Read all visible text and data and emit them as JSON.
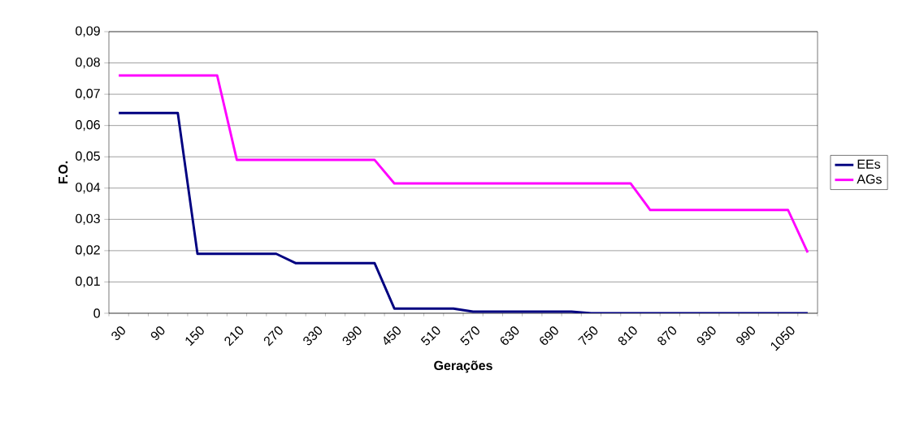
{
  "chart_data": {
    "type": "line",
    "xlabel": "Gerações",
    "ylabel": "F.O.",
    "categories": [
      "30",
      null,
      "90",
      null,
      "150",
      null,
      "210",
      null,
      "270",
      null,
      "330",
      null,
      "390",
      null,
      "450",
      null,
      "510",
      null,
      "570",
      null,
      "630",
      null,
      "690",
      null,
      "750",
      null,
      "810",
      null,
      "870",
      null,
      "930",
      null,
      "990",
      null,
      "1050",
      null
    ],
    "series": [
      {
        "name": "EEs",
        "color": "#000080",
        "values": [
          0.064,
          0.064,
          0.064,
          0.064,
          0.019,
          0.019,
          0.019,
          0.019,
          0.019,
          0.016,
          0.016,
          0.016,
          0.016,
          0.016,
          0.0015,
          0.0015,
          0.0015,
          0.0015,
          0.0005,
          0.0005,
          0.0005,
          0.0005,
          0.0005,
          0.0005,
          0,
          0,
          0,
          0,
          0,
          0,
          0,
          0,
          0,
          0,
          0,
          0
        ]
      },
      {
        "name": "AGs",
        "color": "#ff00ff",
        "values": [
          0.076,
          0.076,
          0.076,
          0.076,
          0.076,
          0.076,
          0.049,
          0.049,
          0.049,
          0.049,
          0.049,
          0.049,
          0.049,
          0.049,
          0.0415,
          0.0415,
          0.0415,
          0.0415,
          0.0415,
          0.0415,
          0.0415,
          0.0415,
          0.0415,
          0.0415,
          0.0415,
          0.0415,
          0.0415,
          0.033,
          0.033,
          0.033,
          0.033,
          0.033,
          0.033,
          0.033,
          0.033,
          0.0194
        ]
      }
    ],
    "ylim": [
      0,
      0.09
    ],
    "yticks": [
      {
        "value": 0,
        "label": "0"
      },
      {
        "value": 0.01,
        "label": "0,01"
      },
      {
        "value": 0.02,
        "label": "0,02"
      },
      {
        "value": 0.03,
        "label": "0,03"
      },
      {
        "value": 0.04,
        "label": "0,04"
      },
      {
        "value": 0.05,
        "label": "0,05"
      },
      {
        "value": 0.06,
        "label": "0,06"
      },
      {
        "value": 0.07,
        "label": "0,07"
      },
      {
        "value": 0.08,
        "label": "0,08"
      },
      {
        "value": 0.09,
        "label": "0,09"
      }
    ],
    "grid": "y",
    "legend": "right",
    "marker": "none",
    "line_style": "solid"
  }
}
